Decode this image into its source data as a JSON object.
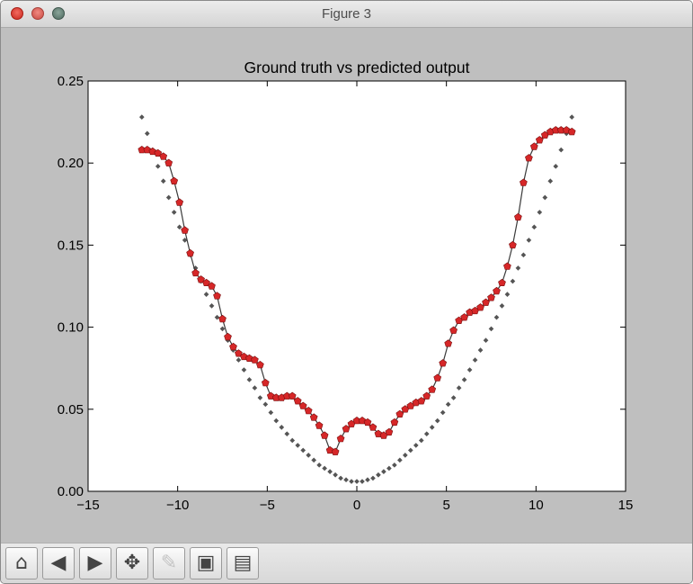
{
  "window": {
    "title": "Figure 3"
  },
  "toolbar": {
    "buttons": [
      {
        "name": "home-button",
        "icon": "home-icon",
        "glyph": "⌂",
        "enabled": true
      },
      {
        "name": "back-button",
        "icon": "arrow-left-icon",
        "glyph": "◀",
        "enabled": true
      },
      {
        "name": "forward-button",
        "icon": "arrow-right-icon",
        "glyph": "▶",
        "enabled": true
      },
      {
        "name": "pan-button",
        "icon": "move-icon",
        "glyph": "✥",
        "enabled": true
      },
      {
        "name": "zoom-button",
        "icon": "zoom-rect-icon",
        "glyph": "✎",
        "enabled": false
      },
      {
        "name": "subplots-button",
        "icon": "subplots-icon",
        "glyph": "▣",
        "enabled": true
      },
      {
        "name": "save-button",
        "icon": "save-icon",
        "glyph": "▤",
        "enabled": true
      }
    ]
  },
  "chart_data": {
    "type": "line",
    "title": "Ground truth vs predicted output",
    "xlabel": "",
    "ylabel": "",
    "xlim": [
      -15,
      15
    ],
    "ylim": [
      0,
      0.25
    ],
    "xticks": [
      -15,
      -10,
      -5,
      0,
      5,
      10,
      15
    ],
    "xtick_labels": [
      "−15",
      "−10",
      "−5",
      "0",
      "5",
      "10",
      "15"
    ],
    "yticks": [
      0,
      0.05,
      0.1,
      0.15,
      0.2,
      0.25
    ],
    "ytick_labels": [
      "0.00",
      "0.05",
      "0.10",
      "0.15",
      "0.20",
      "0.25"
    ],
    "grid": false,
    "legend": "none",
    "colors": {
      "predicted_marker": "#d62728",
      "predicted_line": "#3a3a3a",
      "truth_marker": "#555555",
      "axes_bg": "#ffffff",
      "figure_bg": "#bfbfbf"
    },
    "series": [
      {
        "style": "dotted-markers",
        "x": [
          -12.0,
          -11.7,
          -11.4,
          -11.1,
          -10.8,
          -10.5,
          -10.2,
          -9.9,
          -9.6,
          -9.3,
          -9.0,
          -8.7,
          -8.4,
          -8.1,
          -7.8,
          -7.5,
          -7.2,
          -6.9,
          -6.6,
          -6.3,
          -6.0,
          -5.7,
          -5.4,
          -5.1,
          -4.8,
          -4.5,
          -4.2,
          -3.9,
          -3.6,
          -3.3,
          -3.0,
          -2.7,
          -2.4,
          -2.1,
          -1.8,
          -1.5,
          -1.2,
          -0.9,
          -0.6,
          -0.3,
          0.0,
          0.3,
          0.6,
          0.9,
          1.2,
          1.5,
          1.8,
          2.1,
          2.4,
          2.7,
          3.0,
          3.3,
          3.6,
          3.9,
          4.2,
          4.5,
          4.8,
          5.1,
          5.4,
          5.7,
          6.0,
          6.3,
          6.6,
          6.9,
          7.2,
          7.5,
          7.8,
          8.1,
          8.4,
          8.7,
          9.0,
          9.3,
          9.6,
          9.9,
          10.2,
          10.5,
          10.8,
          11.1,
          11.4,
          11.7,
          12.0
        ],
        "y": [
          0.228,
          0.218,
          0.208,
          0.198,
          0.189,
          0.179,
          0.17,
          0.161,
          0.153,
          0.144,
          0.136,
          0.128,
          0.12,
          0.113,
          0.106,
          0.099,
          0.092,
          0.086,
          0.08,
          0.074,
          0.068,
          0.063,
          0.057,
          0.053,
          0.048,
          0.043,
          0.039,
          0.035,
          0.031,
          0.028,
          0.025,
          0.022,
          0.019,
          0.016,
          0.014,
          0.012,
          0.01,
          0.008,
          0.007,
          0.006,
          0.006,
          0.006,
          0.007,
          0.008,
          0.01,
          0.012,
          0.014,
          0.016,
          0.019,
          0.022,
          0.025,
          0.028,
          0.031,
          0.035,
          0.039,
          0.043,
          0.048,
          0.053,
          0.057,
          0.063,
          0.068,
          0.074,
          0.08,
          0.086,
          0.092,
          0.099,
          0.106,
          0.113,
          0.12,
          0.128,
          0.136,
          0.144,
          0.153,
          0.161,
          0.17,
          0.179,
          0.189,
          0.198,
          0.208,
          0.218,
          0.228
        ]
      },
      {
        "style": "line-with-markers",
        "x": [
          -12.0,
          -11.7,
          -11.4,
          -11.1,
          -10.8,
          -10.5,
          -10.2,
          -9.9,
          -9.6,
          -9.3,
          -9.0,
          -8.7,
          -8.4,
          -8.1,
          -7.8,
          -7.5,
          -7.2,
          -6.9,
          -6.6,
          -6.3,
          -6.0,
          -5.7,
          -5.4,
          -5.1,
          -4.8,
          -4.5,
          -4.2,
          -3.9,
          -3.6,
          -3.3,
          -3.0,
          -2.7,
          -2.4,
          -2.1,
          -1.8,
          -1.5,
          -1.2,
          -0.9,
          -0.6,
          -0.3,
          0.0,
          0.3,
          0.6,
          0.9,
          1.2,
          1.5,
          1.8,
          2.1,
          2.4,
          2.7,
          3.0,
          3.3,
          3.6,
          3.9,
          4.2,
          4.5,
          4.8,
          5.1,
          5.4,
          5.7,
          6.0,
          6.3,
          6.6,
          6.9,
          7.2,
          7.5,
          7.8,
          8.1,
          8.4,
          8.7,
          9.0,
          9.3,
          9.6,
          9.9,
          10.2,
          10.5,
          10.8,
          11.1,
          11.4,
          11.7,
          12.0
        ],
        "y": [
          0.208,
          0.208,
          0.207,
          0.206,
          0.204,
          0.2,
          0.189,
          0.176,
          0.159,
          0.145,
          0.133,
          0.129,
          0.127,
          0.125,
          0.119,
          0.105,
          0.094,
          0.088,
          0.084,
          0.082,
          0.081,
          0.08,
          0.077,
          0.066,
          0.058,
          0.057,
          0.057,
          0.058,
          0.058,
          0.055,
          0.052,
          0.049,
          0.045,
          0.04,
          0.034,
          0.025,
          0.024,
          0.032,
          0.038,
          0.041,
          0.043,
          0.043,
          0.042,
          0.039,
          0.035,
          0.034,
          0.036,
          0.042,
          0.047,
          0.05,
          0.052,
          0.054,
          0.055,
          0.058,
          0.062,
          0.069,
          0.078,
          0.09,
          0.098,
          0.104,
          0.106,
          0.109,
          0.11,
          0.112,
          0.115,
          0.118,
          0.122,
          0.127,
          0.137,
          0.15,
          0.167,
          0.188,
          0.203,
          0.21,
          0.214,
          0.217,
          0.219,
          0.22,
          0.22,
          0.22,
          0.219
        ]
      }
    ]
  }
}
